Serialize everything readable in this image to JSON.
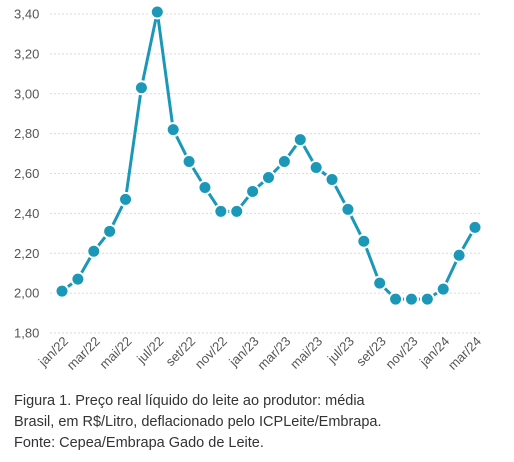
{
  "chart_data": {
    "type": "line",
    "ylim": [
      1.8,
      3.4
    ],
    "yticks": [
      "1,80",
      "2,00",
      "2,20",
      "2,40",
      "2,60",
      "2,80",
      "3,00",
      "3,20",
      "3,40"
    ],
    "grid": true,
    "x_labels_visible": [
      "jan/22",
      "mar/22",
      "mai/22",
      "jul/22",
      "set/22",
      "nov/22",
      "jan/23",
      "mar/23",
      "mai/23",
      "jul/23",
      "set/23",
      "nov/23",
      "jan/24",
      "mar/24"
    ],
    "x": [
      "jan/22",
      "fev/22",
      "mar/22",
      "abr/22",
      "mai/22",
      "jun/22",
      "jul/22",
      "ago/22",
      "set/22",
      "out/22",
      "nov/22",
      "dez/22",
      "jan/23",
      "fev/23",
      "mar/23",
      "abr/23",
      "mai/23",
      "jun/23",
      "jul/23",
      "ago/23",
      "set/23",
      "out/23",
      "nov/23",
      "dez/23",
      "jan/24",
      "fev/24",
      "mar/24"
    ],
    "series": [
      {
        "values": [
          2.01,
          2.07,
          2.21,
          2.31,
          2.47,
          3.03,
          3.41,
          2.82,
          2.66,
          2.53,
          2.41,
          2.41,
          2.51,
          2.58,
          2.66,
          2.77,
          2.63,
          2.57,
          2.42,
          2.26,
          2.05,
          1.97,
          1.97,
          1.97,
          2.02,
          2.19,
          2.33
        ]
      }
    ],
    "colors": {
      "series": "#1b97b8",
      "grid": "#d9d9d9"
    }
  },
  "caption": {
    "line1": "Figura 1. Preço real líquido do leite ao produtor: média",
    "line2": "Brasil, em R$/Litro, deflacionado pelo ICPLeite/Embrapa.",
    "line3": "Fonte: Cepea/Embrapa Gado de Leite."
  }
}
